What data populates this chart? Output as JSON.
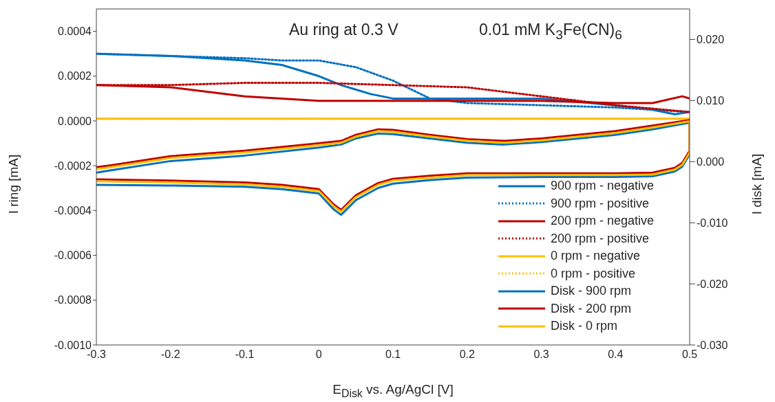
{
  "chart_data": {
    "type": "line",
    "xlabel": "E$_{Disk}$ vs. Ag/AgCl [V]",
    "ylabel": "I ring [mA]",
    "y2label": "I disk [mA]",
    "annotations": [
      "Au ring at 0.3 V",
      "0.01 mM K$_{3}$Fe(CN)$_{6}$"
    ],
    "xlim": [
      -0.3,
      0.5
    ],
    "xticks": [
      -0.3,
      -0.2,
      -0.1,
      0,
      0.1,
      0.2,
      0.3,
      0.4,
      0.5
    ],
    "ylim": [
      -0.001,
      0.0005
    ],
    "yticks": [
      {
        "value": -0.001,
        "label": "-0.0010"
      },
      {
        "value": -0.0008,
        "label": "-0.0008"
      },
      {
        "value": -0.0006,
        "label": "-0.0006"
      },
      {
        "value": -0.0004,
        "label": "-0.0004"
      },
      {
        "value": -0.0002,
        "label": "-0.0002"
      },
      {
        "value": 0,
        "label": "0.0000"
      },
      {
        "value": 0.0002,
        "label": "0.0002"
      },
      {
        "value": 0.0004,
        "label": "0.0004"
      }
    ],
    "y2lim": [
      -0.03,
      0.025
    ],
    "y2ticks": [
      {
        "value": -0.03,
        "label": "-0.030"
      },
      {
        "value": -0.02,
        "label": "-0.020"
      },
      {
        "value": -0.01,
        "label": "-0.010"
      },
      {
        "value": 0,
        "label": "0.000"
      },
      {
        "value": 0.01,
        "label": "0.010"
      },
      {
        "value": 0.02,
        "label": "0.020"
      }
    ],
    "grid": false,
    "legend": "bottom right",
    "series": [
      {
        "name": "900 rpm - negative",
        "color": "#0070c0",
        "line_style": "solid",
        "x": [
          -0.3,
          -0.2,
          -0.1,
          -0.05,
          0,
          0.03,
          0.07,
          0.1,
          0.2,
          0.3,
          0.4,
          0.45,
          0.48,
          0.5
        ],
        "values": [
          0.0003,
          0.00029,
          0.00027,
          0.00025,
          0.0002,
          0.00016,
          0.00012,
          0.0001,
          0.0001,
          0.0001,
          7e-05,
          5e-05,
          3e-05,
          4e-05
        ]
      },
      {
        "name": "900 rpm - positive",
        "color": "#0070c0",
        "line_style": "dotted",
        "x": [
          -0.3,
          -0.2,
          -0.1,
          -0.05,
          0,
          0.05,
          0.1,
          0.15,
          0.2,
          0.3,
          0.4,
          0.5
        ],
        "values": [
          0.0003,
          0.00029,
          0.00028,
          0.00027,
          0.00027,
          0.00024,
          0.00018,
          0.0001,
          8e-05,
          7e-05,
          6e-05,
          4e-05
        ]
      },
      {
        "name": "200 rpm - negative",
        "color": "#c00000",
        "line_style": "solid",
        "x": [
          -0.3,
          -0.2,
          -0.1,
          0,
          0.1,
          0.2,
          0.3,
          0.4,
          0.45,
          0.49,
          0.5
        ],
        "values": [
          0.00016,
          0.00015,
          0.00011,
          9e-05,
          9e-05,
          9e-05,
          9e-05,
          8e-05,
          8e-05,
          0.00011,
          0.0001
        ]
      },
      {
        "name": "200 rpm - positive",
        "color": "#c00000",
        "line_style": "dotted",
        "x": [
          -0.3,
          -0.2,
          -0.1,
          0,
          0.1,
          0.2,
          0.3,
          0.4,
          0.5
        ],
        "values": [
          0.00016,
          0.00016,
          0.00017,
          0.00017,
          0.00016,
          0.00015,
          0.00011,
          7e-05,
          4e-05
        ]
      },
      {
        "name": "0 rpm - negative",
        "color": "#ffc000",
        "line_style": "solid",
        "x": [
          -0.3,
          -0.1,
          0.1,
          0.3,
          0.5
        ],
        "values": [
          1e-05,
          1e-05,
          1e-05,
          1e-05,
          1e-05
        ]
      },
      {
        "name": "0 rpm - positive",
        "color": "#ffc000",
        "line_style": "dotted",
        "x": [
          -0.3,
          -0.1,
          0.1,
          0.3,
          0.5
        ],
        "values": [
          1e-05,
          1e-05,
          1e-05,
          1e-05,
          1e-05
        ]
      },
      {
        "name": "Disk - 900 rpm",
        "color": "#0070c0",
        "line_style": "solid",
        "axis": "y2",
        "x": [
          -0.3,
          -0.2,
          -0.1,
          -0.05,
          0,
          0.02,
          0.03,
          0.05,
          0.08,
          0.1,
          0.15,
          0.2,
          0.3,
          0.4,
          0.45,
          0.48,
          0.49,
          0.5,
          0.5,
          0.45,
          0.4,
          0.3,
          0.25,
          0.2,
          0.15,
          0.1,
          0.08,
          0.05,
          0.03,
          0,
          -0.1,
          -0.2,
          -0.28,
          -0.3
        ],
        "values": [
          -0.0038,
          -0.0039,
          -0.0041,
          -0.0045,
          -0.0052,
          -0.0078,
          -0.0087,
          -0.0063,
          -0.0043,
          -0.0036,
          -0.003,
          -0.0026,
          -0.0025,
          -0.0025,
          -0.0024,
          -0.0016,
          -0.0008,
          0.0012,
          0.0064,
          0.0053,
          0.0044,
          0.0032,
          0.0028,
          0.0031,
          0.0038,
          0.0045,
          0.0046,
          0.0038,
          0.0028,
          0.0023,
          0.001,
          0.0001,
          -0.0014,
          -0.0018
        ]
      },
      {
        "name": "Disk - 200 rpm",
        "color": "#c00000",
        "line_style": "solid",
        "axis": "y2",
        "x": [
          -0.3,
          -0.2,
          -0.1,
          -0.05,
          0,
          0.02,
          0.03,
          0.05,
          0.08,
          0.1,
          0.15,
          0.2,
          0.3,
          0.4,
          0.45,
          0.48,
          0.49,
          0.5,
          0.5,
          0.45,
          0.4,
          0.3,
          0.25,
          0.2,
          0.15,
          0.1,
          0.08,
          0.05,
          0.03,
          0,
          -0.1,
          -0.2,
          -0.28,
          -0.3
        ],
        "values": [
          -0.0029,
          -0.0031,
          -0.0034,
          -0.0038,
          -0.0045,
          -0.007,
          -0.0079,
          -0.0055,
          -0.0035,
          -0.0028,
          -0.0023,
          -0.0019,
          -0.0019,
          -0.0019,
          -0.0018,
          -0.001,
          -0.0002,
          0.0018,
          0.0068,
          0.0059,
          0.005,
          0.0038,
          0.0034,
          0.0037,
          0.0044,
          0.0052,
          0.0053,
          0.0044,
          0.0034,
          0.003,
          0.0018,
          0.0009,
          -0.0006,
          -0.0009
        ]
      },
      {
        "name": "Disk - 0 rpm",
        "color": "#ffc000",
        "line_style": "solid",
        "axis": "y2",
        "x": [
          -0.3,
          -0.2,
          -0.1,
          -0.05,
          0,
          0.02,
          0.03,
          0.05,
          0.08,
          0.1,
          0.15,
          0.2,
          0.3,
          0.4,
          0.45,
          0.48,
          0.49,
          0.5,
          0.5,
          0.45,
          0.4,
          0.3,
          0.25,
          0.2,
          0.15,
          0.1,
          0.08,
          0.05,
          0.03,
          0,
          -0.1,
          -0.2,
          -0.28,
          -0.3
        ],
        "values": [
          -0.0032,
          -0.0034,
          -0.0037,
          -0.0041,
          -0.0048,
          -0.0073,
          -0.0082,
          -0.0058,
          -0.0038,
          -0.0031,
          -0.0026,
          -0.0022,
          -0.0022,
          -0.0022,
          -0.0021,
          -0.0013,
          -0.0005,
          0.0015,
          0.0066,
          0.0056,
          0.0047,
          0.0035,
          0.0031,
          0.0034,
          0.0041,
          0.0049,
          0.005,
          0.0041,
          0.0031,
          0.0027,
          0.0015,
          0.0006,
          -0.0009,
          -0.0012
        ]
      }
    ]
  }
}
